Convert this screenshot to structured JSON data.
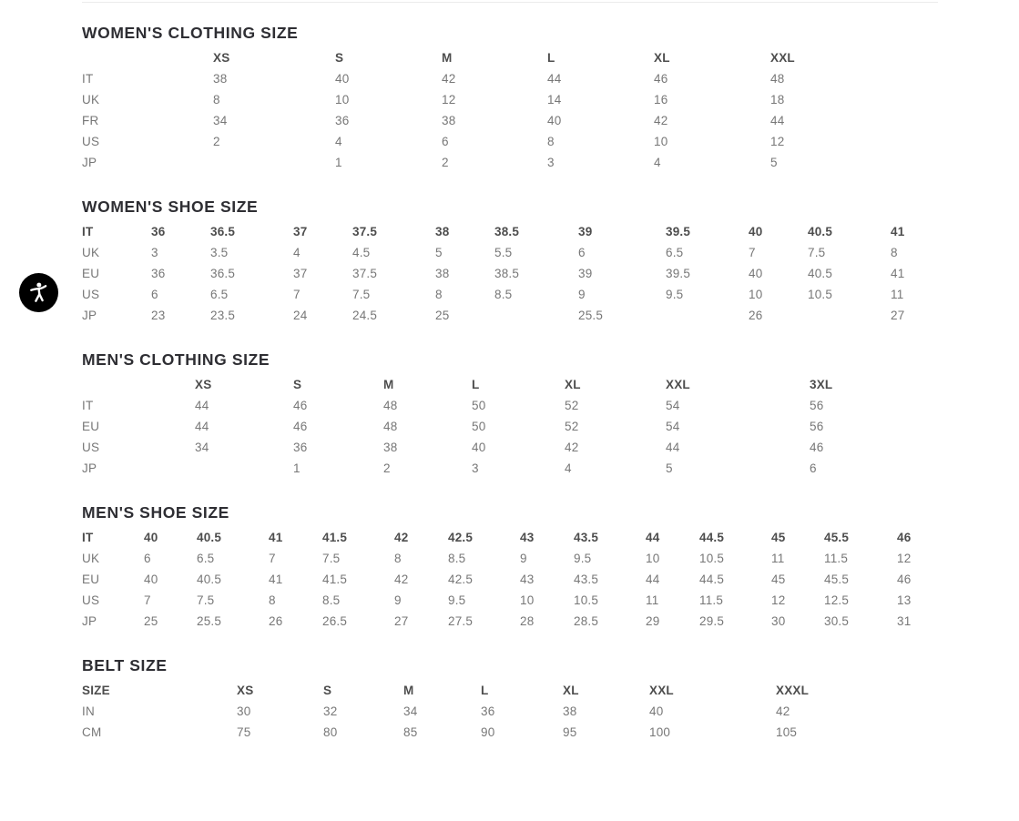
{
  "colors": {
    "page_bg": "#ffffff",
    "divider_color": "#ebebeb",
    "title_color": "#2e2e33",
    "header_color": "#4d4d4d",
    "text_color": "#777777",
    "widget_bg": "#000000",
    "widget_icon_color": "#ffffff"
  },
  "widget": {
    "icon": "accessibility-person-icon"
  },
  "sections": [
    {
      "id": "womens-clothing-size",
      "title": "WOMEN'S CLOTHING SIZE",
      "header": [
        "",
        "XS",
        "S",
        "M",
        "L",
        "XL",
        "XXL"
      ],
      "rows": [
        [
          "IT",
          "38",
          "40",
          "42",
          "44",
          "46",
          "48"
        ],
        [
          "UK",
          "8",
          "10",
          "12",
          "14",
          "16",
          "18"
        ],
        [
          "FR",
          "34",
          "36",
          "38",
          "40",
          "42",
          "44"
        ],
        [
          "US",
          "2",
          "4",
          "6",
          "8",
          "10",
          "12"
        ],
        [
          "JP",
          "",
          "1",
          "2",
          "3",
          "4",
          "5"
        ]
      ]
    },
    {
      "id": "womens-shoe-size",
      "title": "WOMEN'S SHOE SIZE",
      "header": [
        "IT",
        "36",
        "36.5",
        "37",
        "37.5",
        "38",
        "38.5",
        "39",
        "39.5",
        "40",
        "40.5",
        "41"
      ],
      "rows": [
        [
          "UK",
          "3",
          "3.5",
          "4",
          "4.5",
          "5",
          "5.5",
          "6",
          "6.5",
          "7",
          "7.5",
          "8"
        ],
        [
          "EU",
          "36",
          "36.5",
          "37",
          "37.5",
          "38",
          "38.5",
          "39",
          "39.5",
          "40",
          "40.5",
          "41"
        ],
        [
          "US",
          "6",
          "6.5",
          "7",
          "7.5",
          "8",
          "8.5",
          "9",
          "9.5",
          "10",
          "10.5",
          "11"
        ],
        [
          "JP",
          "23",
          "23.5",
          "24",
          "24.5",
          "25",
          "",
          "25.5",
          "",
          "26",
          "",
          "27"
        ]
      ]
    },
    {
      "id": "mens-clothing-size",
      "title": "MEN'S CLOTHING SIZE",
      "header": [
        "",
        "XS",
        "S",
        "M",
        "L",
        "XL",
        "XXL",
        "3XL"
      ],
      "rows": [
        [
          "IT",
          "44",
          "46",
          "48",
          "50",
          "52",
          "54",
          "56"
        ],
        [
          "EU",
          "44",
          "46",
          "48",
          "50",
          "52",
          "54",
          "56"
        ],
        [
          "US",
          "34",
          "36",
          "38",
          "40",
          "42",
          "44",
          "46"
        ],
        [
          "JP",
          "",
          "1",
          "2",
          "3",
          "4",
          "5",
          "6"
        ]
      ]
    },
    {
      "id": "mens-shoe-size",
      "title": "MEN'S SHOE SIZE",
      "header": [
        "IT",
        "40",
        "40.5",
        "41",
        "41.5",
        "42",
        "42.5",
        "43",
        "43.5",
        "44",
        "44.5",
        "45",
        "45.5",
        "46"
      ],
      "rows": [
        [
          "UK",
          "6",
          "6.5",
          "7",
          "7.5",
          "8",
          "8.5",
          "9",
          "9.5",
          "10",
          "10.5",
          "11",
          "11.5",
          "12"
        ],
        [
          "EU",
          "40",
          "40.5",
          "41",
          "41.5",
          "42",
          "42.5",
          "43",
          "43.5",
          "44",
          "44.5",
          "45",
          "45.5",
          "46"
        ],
        [
          "US",
          "7",
          "7.5",
          "8",
          "8.5",
          "9",
          "9.5",
          "10",
          "10.5",
          "11",
          "11.5",
          "12",
          "12.5",
          "13"
        ],
        [
          "JP",
          "25",
          "25.5",
          "26",
          "26.5",
          "27",
          "27.5",
          "28",
          "28.5",
          "29",
          "29.5",
          "30",
          "30.5",
          "31"
        ]
      ]
    },
    {
      "id": "belt-size",
      "title": "BELT SIZE",
      "header": [
        "SIZE",
        "XS",
        "S",
        "M",
        "L",
        "XL",
        "XXL",
        "XXXL"
      ],
      "rows": [
        [
          "IN",
          "30",
          "32",
          "34",
          "36",
          "38",
          "40",
          "42"
        ],
        [
          "CM",
          "75",
          "80",
          "85",
          "90",
          "95",
          "100",
          "105"
        ]
      ]
    }
  ]
}
